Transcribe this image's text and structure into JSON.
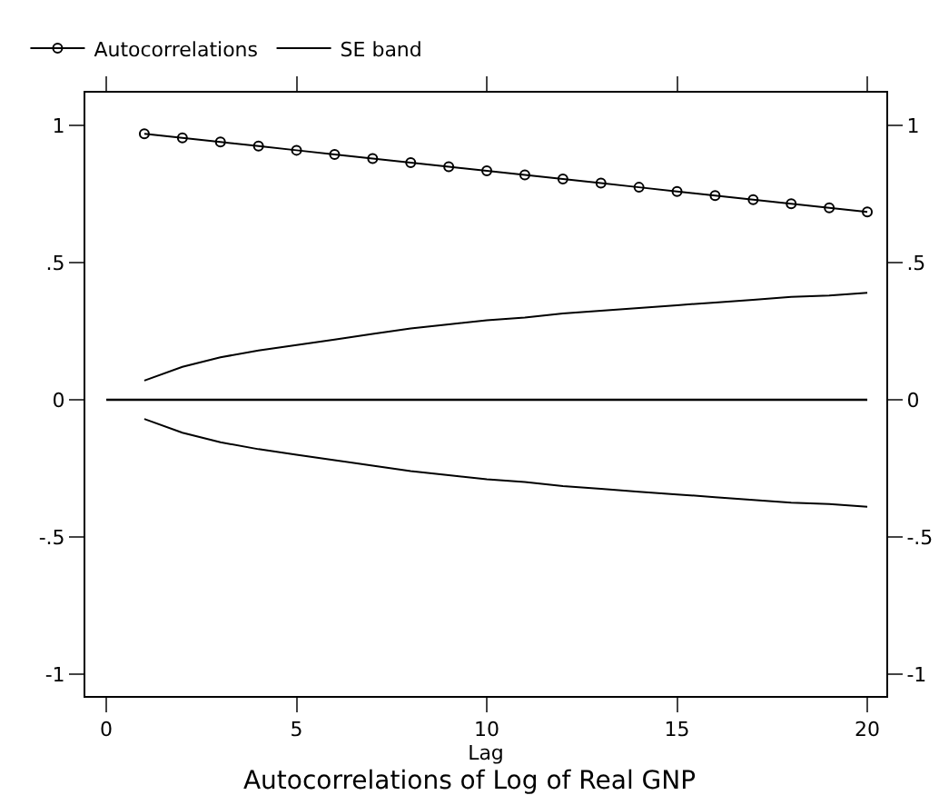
{
  "chart_data": {
    "type": "line",
    "title": "Autocorrelations of Log of Real GNP",
    "xlabel": "Lag",
    "x": [
      1,
      2,
      3,
      4,
      5,
      6,
      7,
      8,
      9,
      10,
      11,
      12,
      13,
      14,
      15,
      16,
      17,
      18,
      19,
      20
    ],
    "series": [
      {
        "name": "Autocorrelations",
        "color": "#000000",
        "marker": "circle",
        "values": [
          0.97,
          0.955,
          0.94,
          0.925,
          0.91,
          0.895,
          0.88,
          0.865,
          0.85,
          0.835,
          0.82,
          0.805,
          0.79,
          0.775,
          0.76,
          0.745,
          0.73,
          0.715,
          0.7,
          0.685
        ]
      },
      {
        "name": "SE band",
        "color": "#000000",
        "marker": "none",
        "values": [
          0.07,
          0.12,
          0.155,
          0.18,
          0.2,
          0.22,
          0.24,
          0.26,
          0.275,
          0.29,
          0.3,
          0.315,
          0.325,
          0.335,
          0.345,
          0.355,
          0.365,
          0.375,
          0.38,
          0.39
        ]
      },
      {
        "color": "#000000",
        "marker": "none",
        "values": [
          -0.07,
          -0.12,
          -0.155,
          -0.18,
          -0.2,
          -0.22,
          -0.24,
          -0.26,
          -0.275,
          -0.29,
          -0.3,
          -0.315,
          -0.325,
          -0.335,
          -0.345,
          -0.355,
          -0.365,
          -0.375,
          -0.38,
          -0.39
        ]
      }
    ],
    "ref_lines": [
      {
        "axis": "y",
        "value": 0,
        "color": "#000000"
      }
    ],
    "xlim": [
      -0.55,
      20.5
    ],
    "xticks": [
      0,
      5,
      10,
      15,
      20
    ],
    "ylim": [
      -1.08,
      1.12
    ],
    "yticks": [
      {
        "value": -1,
        "label": "-1"
      },
      {
        "value": -0.5,
        "label": "-.5"
      },
      0,
      {
        "value": 0.5,
        "label": ".5"
      },
      1
    ],
    "y2lim": [
      -1.08,
      1.12
    ],
    "y2ticks": [
      {
        "value": -1,
        "label": "-1"
      },
      {
        "value": -0.5,
        "label": "-.5"
      },
      0,
      {
        "value": 0.5,
        "label": ".5"
      },
      1
    ],
    "legend": "top left",
    "grid": false,
    "line_style": "solid"
  }
}
